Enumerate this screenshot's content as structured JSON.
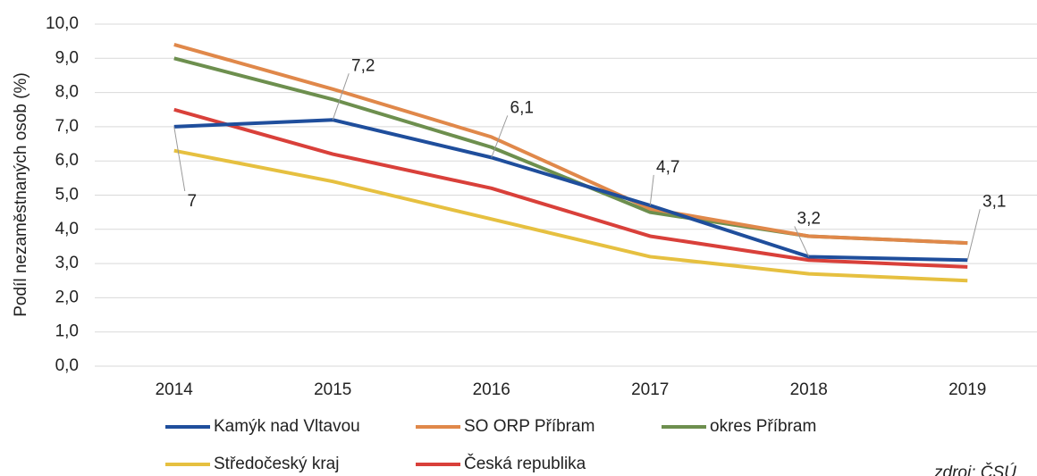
{
  "chart_data": {
    "type": "line",
    "y_label": "Podíl nezaměstnaných osob (%)",
    "source": "zdroj: ČSÚ",
    "categories": [
      "2014",
      "2015",
      "2016",
      "2017",
      "2018",
      "2019"
    ],
    "ylim": [
      0,
      10
    ],
    "yticks": [
      {
        "value": 0,
        "label": "0,0"
      },
      {
        "value": 1,
        "label": "1,0"
      },
      {
        "value": 2,
        "label": "2,0"
      },
      {
        "value": 3,
        "label": "3,0"
      },
      {
        "value": 4,
        "label": "4,0"
      },
      {
        "value": 5,
        "label": "5,0"
      },
      {
        "value": 6,
        "label": "6,0"
      },
      {
        "value": 7,
        "label": "7,0"
      },
      {
        "value": 8,
        "label": "8,0"
      },
      {
        "value": 9,
        "label": "9,0"
      },
      {
        "value": 10,
        "label": "10,0"
      }
    ],
    "grid": true,
    "series": [
      {
        "name": "Kamýk nad Vltavou",
        "color": "#1f4e9c",
        "values": [
          7,
          7.2,
          6.1,
          4.7,
          3.2,
          3.1
        ],
        "value_labels": [
          "7",
          "7,2",
          "6,1",
          "4,7",
          "3,2",
          "3,1"
        ]
      },
      {
        "name": "SO ORP Příbram",
        "color": "#e0884a",
        "values": [
          9.4,
          8.1,
          6.7,
          4.6,
          3.8,
          3.6
        ]
      },
      {
        "name": "okres Příbram",
        "color": "#6d8f4e",
        "values": [
          9.0,
          7.8,
          6.4,
          4.5,
          3.8,
          3.6
        ]
      },
      {
        "name": "Středočeský kraj",
        "color": "#e6c040",
        "values": [
          6.3,
          5.4,
          4.3,
          3.2,
          2.7,
          2.5
        ]
      },
      {
        "name": "Česká republika",
        "color": "#d9403a",
        "values": [
          7.5,
          6.2,
          5.2,
          3.8,
          3.1,
          2.9
        ]
      }
    ]
  }
}
